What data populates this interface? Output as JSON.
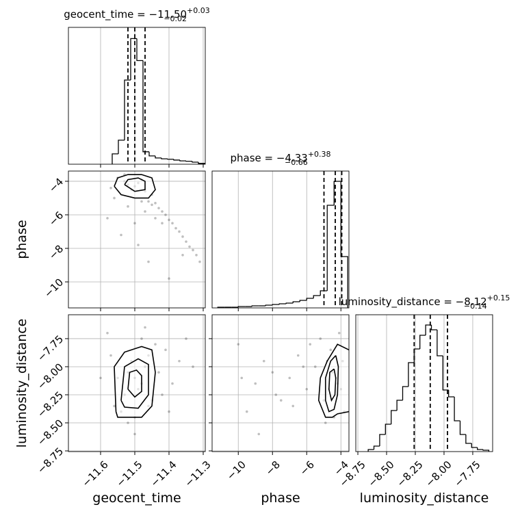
{
  "chart_data": [
    {
      "type": "histogram",
      "title": "geocent_time = −11.50",
      "title_upper": "+0.03",
      "title_lower": "−0.02",
      "bins": [
        -11.566,
        -11.548,
        -11.53,
        -11.512,
        -11.494,
        -11.476,
        -11.458,
        -11.44,
        -11.422,
        -11.404,
        -11.386,
        -11.368,
        -11.35,
        -11.332,
        -11.314,
        -11.296
      ],
      "counts": [
        0.25,
        0.58,
        2.03,
        3.03,
        2.5,
        0.3,
        0.2,
        0.15,
        0.13,
        0.12,
        0.1,
        0.08,
        0.07,
        0.05,
        0.02
      ],
      "quantiles": [
        -11.52,
        -11.5,
        -11.47
      ],
      "color": "#000000",
      "xlim": [
        -11.694,
        -11.294
      ],
      "ylim": [
        0,
        3.3
      ],
      "grid": true
    },
    {
      "type": "scatter",
      "color": "#000000",
      "ylabel": "phase",
      "x": [
        -11.52,
        -11.5,
        -11.49,
        -11.51,
        -11.48,
        -11.53,
        -11.47,
        -11.46,
        -11.55,
        -11.44,
        -11.45,
        -11.43,
        -11.42,
        -11.41,
        -11.4,
        -11.39,
        -11.38,
        -11.37,
        -11.36,
        -11.35,
        -11.34,
        -11.33,
        -11.32,
        -11.31,
        -11.42,
        -11.44,
        -11.47,
        -11.5,
        -11.52,
        -11.56,
        -11.58,
        -11.54,
        -11.49,
        -11.46,
        -11.4,
        -11.36,
        -11.48,
        -11.57,
        -11.53,
        -11.45
      ],
      "y": [
        -4.2,
        -4.3,
        -4.1,
        -4.5,
        -3.9,
        -4.0,
        -4.6,
        -5.2,
        -3.8,
        -5.3,
        -5.4,
        -5.6,
        -5.8,
        -6.0,
        -6.3,
        -6.5,
        -6.8,
        -7.0,
        -7.3,
        -7.6,
        -7.9,
        -8.1,
        -8.4,
        -8.8,
        -6.5,
        -6.2,
        -5.8,
        -6.5,
        -5.5,
        -5.0,
        -6.2,
        -7.2,
        -7.8,
        -8.8,
        -9.8,
        -8.4,
        -5.2,
        -4.4,
        -3.6,
        -4.8
      ],
      "contours": [
        {
          "x": [
            -11.56,
            -11.55,
            -11.52,
            -11.48,
            -11.45,
            -11.44,
            -11.46,
            -11.5,
            -11.54,
            -11.56
          ],
          "y": [
            -4.3,
            -3.8,
            -3.6,
            -3.6,
            -3.8,
            -4.5,
            -5.0,
            -5.0,
            -4.8,
            -4.3
          ]
        },
        {
          "x": [
            -11.53,
            -11.52,
            -11.49,
            -11.47,
            -11.47,
            -11.5,
            -11.53
          ],
          "y": [
            -4.2,
            -3.9,
            -3.8,
            -4.0,
            -4.5,
            -4.6,
            -4.2
          ]
        }
      ],
      "xlim": [
        -11.694,
        -11.294
      ],
      "ylim": [
        -11.55,
        -3.39
      ],
      "yticks": [
        {
          "value": -4,
          "label": "−4"
        },
        {
          "value": -6,
          "label": "−6"
        },
        {
          "value": -8,
          "label": "−8"
        },
        {
          "value": -10,
          "label": "−10"
        }
      ],
      "grid": true
    },
    {
      "type": "histogram",
      "title": "phase = −4.33",
      "title_upper": "+0.38",
      "title_lower": "−0.66",
      "bins": [
        -11.2,
        -10.8,
        -10.4,
        -10.0,
        -9.6,
        -9.2,
        -8.8,
        -8.4,
        -8.0,
        -7.6,
        -7.2,
        -6.8,
        -6.4,
        -6.0,
        -5.6,
        -5.2,
        -4.8,
        -4.4,
        -4.0,
        -3.6
      ],
      "counts": [
        1,
        1,
        1,
        2,
        2,
        3,
        3,
        4,
        5,
        6,
        7,
        9,
        11,
        14,
        18,
        25,
        150,
        185,
        75
      ],
      "quantiles": [
        -4.99,
        -4.33,
        -3.95
      ],
      "color": "#000000",
      "xlim": [
        -11.53,
        -3.53
      ],
      "ylim": [
        0,
        200
      ],
      "grid": true
    },
    {
      "type": "scatter",
      "color": "#000000",
      "xlabel": "geocent_time",
      "ylabel": "luminosity_distance",
      "x": [
        -11.5,
        -11.52,
        -11.48,
        -11.49,
        -11.51,
        -11.53,
        -11.47,
        -11.46,
        -11.55,
        -11.45,
        -11.44,
        -11.56,
        -11.58,
        -11.43,
        -11.41,
        -11.39,
        -11.37,
        -11.35,
        -11.5,
        -11.52,
        -11.48,
        -11.54,
        -11.46,
        -11.42,
        -11.6,
        -11.57,
        -11.4,
        -11.33,
        -11.5,
        -11.47
      ],
      "y": [
        -8.1,
        -8.05,
        -8.15,
        -8.2,
        -7.95,
        -8.25,
        -8.0,
        -7.9,
        -8.1,
        -8.3,
        -7.8,
        -8.35,
        -7.7,
        -8.05,
        -7.85,
        -8.15,
        -7.95,
        -7.75,
        -8.45,
        -8.5,
        -7.75,
        -8.4,
        -8.35,
        -8.25,
        -8.1,
        -7.9,
        -8.4,
        -8.0,
        -8.6,
        -7.65
      ],
      "contours": [
        {
          "x": [
            -11.555,
            -11.56,
            -11.53,
            -11.48,
            -11.45,
            -11.44,
            -11.45,
            -11.48,
            -11.55,
            -11.555
          ],
          "y": [
            -8.4,
            -8.0,
            -7.87,
            -7.82,
            -7.85,
            -8.05,
            -8.35,
            -8.45,
            -8.45,
            -8.4
          ]
        },
        {
          "x": [
            -11.54,
            -11.53,
            -11.49,
            -11.46,
            -11.46,
            -11.49,
            -11.53,
            -11.54
          ],
          "y": [
            -8.3,
            -8.0,
            -7.93,
            -7.98,
            -8.25,
            -8.37,
            -8.36,
            -8.3
          ]
        },
        {
          "x": [
            -11.52,
            -11.515,
            -11.495,
            -11.48,
            -11.48,
            -11.5,
            -11.52
          ],
          "y": [
            -8.2,
            -8.05,
            -8.03,
            -8.08,
            -8.22,
            -8.27,
            -8.2
          ]
        }
      ],
      "xlim": [
        -11.694,
        -11.294
      ],
      "ylim": [
        -8.756,
        -7.537
      ],
      "xticks": [
        {
          "value": -11.6,
          "label": "−11.6"
        },
        {
          "value": -11.5,
          "label": "−11.5"
        },
        {
          "value": -11.4,
          "label": "−11.4"
        },
        {
          "value": -11.3,
          "label": "−11.3"
        }
      ],
      "yticks": [
        {
          "value": -7.75,
          "label": "−7.75"
        },
        {
          "value": -8.0,
          "label": "−8.00"
        },
        {
          "value": -8.25,
          "label": "−8.25"
        },
        {
          "value": -8.5,
          "label": "−8.50"
        },
        {
          "value": -8.75,
          "label": "−8.75"
        }
      ],
      "grid": true
    },
    {
      "type": "scatter",
      "color": "#000000",
      "xlabel": "phase",
      "x": [
        -4.3,
        -4.5,
        -4.2,
        -4.8,
        -4.0,
        -5.0,
        -4.6,
        -3.8,
        -5.5,
        -6.0,
        -6.5,
        -7.0,
        -7.5,
        -8.0,
        -8.5,
        -9.0,
        -9.5,
        -10.0,
        -5.2,
        -4.4,
        -4.1,
        -6.8,
        -7.8,
        -5.8,
        -4.9,
        -3.9,
        -9.8,
        -8.8,
        -6.2,
        -4.7
      ],
      "y": [
        -8.1,
        -8.05,
        -8.15,
        -7.95,
        -8.2,
        -8.3,
        -7.85,
        -8.4,
        -8.0,
        -8.2,
        -7.9,
        -8.1,
        -8.3,
        -8.05,
        -7.95,
        -8.15,
        -8.4,
        -7.8,
        -7.75,
        -8.45,
        -7.7,
        -8.35,
        -8.25,
        -7.8,
        -8.5,
        -7.95,
        -8.1,
        -8.6,
        -8.0,
        -8.2
      ],
      "contours": [
        {
          "x": [
            -3.53,
            -4.2,
            -4.8,
            -5.2,
            -5.3,
            -4.9,
            -4.5,
            -4.2,
            -3.53
          ],
          "y": [
            -7.85,
            -7.8,
            -7.95,
            -8.1,
            -8.3,
            -8.45,
            -8.45,
            -8.42,
            -8.4
          ]
        },
        {
          "x": [
            -4.3,
            -4.6,
            -4.9,
            -4.9,
            -4.7,
            -4.4,
            -4.2,
            -4.15,
            -4.3
          ],
          "y": [
            -7.9,
            -7.95,
            -8.1,
            -8.3,
            -8.4,
            -8.38,
            -8.25,
            -8.0,
            -7.9
          ]
        },
        {
          "x": [
            -4.4,
            -4.65,
            -4.7,
            -4.55,
            -4.35,
            -4.3,
            -4.4
          ],
          "y": [
            -8.02,
            -8.05,
            -8.2,
            -8.3,
            -8.25,
            -8.1,
            -8.02
          ]
        }
      ],
      "xlim": [
        -11.53,
        -3.53
      ],
      "ylim": [
        -8.756,
        -7.537
      ],
      "xticks": [
        {
          "value": -10,
          "label": "−10"
        },
        {
          "value": -8,
          "label": "−8"
        },
        {
          "value": -6,
          "label": "−6"
        },
        {
          "value": -4,
          "label": "−4"
        }
      ],
      "grid": true
    },
    {
      "type": "histogram",
      "title": "luminosity_distance = −8.12",
      "title_upper": "+0.15",
      "title_lower": "−0.14",
      "xlabel": "luminosity_distance",
      "bins": [
        -8.66,
        -8.61,
        -8.56,
        -8.51,
        -8.46,
        -8.41,
        -8.36,
        -8.31,
        -8.26,
        -8.21,
        -8.16,
        -8.11,
        -8.06,
        -8.01,
        -7.96,
        -7.91,
        -7.86,
        -7.81,
        -7.76,
        -7.71,
        -7.66,
        -7.61
      ],
      "counts": [
        3,
        8,
        25,
        40,
        60,
        75,
        95,
        130,
        150,
        170,
        185,
        178,
        140,
        90,
        80,
        45,
        25,
        12,
        6,
        3,
        2
      ],
      "quantiles": [
        -8.26,
        -8.12,
        -7.97
      ],
      "color": "#000000",
      "xlim": [
        -8.768,
        -7.577
      ],
      "ylim": [
        0,
        200
      ],
      "xticks": [
        {
          "value": -8.75,
          "label": "−8.75"
        },
        {
          "value": -8.5,
          "label": "−8.50"
        },
        {
          "value": -8.25,
          "label": "−8.25"
        },
        {
          "value": -8.0,
          "label": "−8.00"
        },
        {
          "value": -7.75,
          "label": "−7.75"
        }
      ],
      "grid": true
    }
  ]
}
